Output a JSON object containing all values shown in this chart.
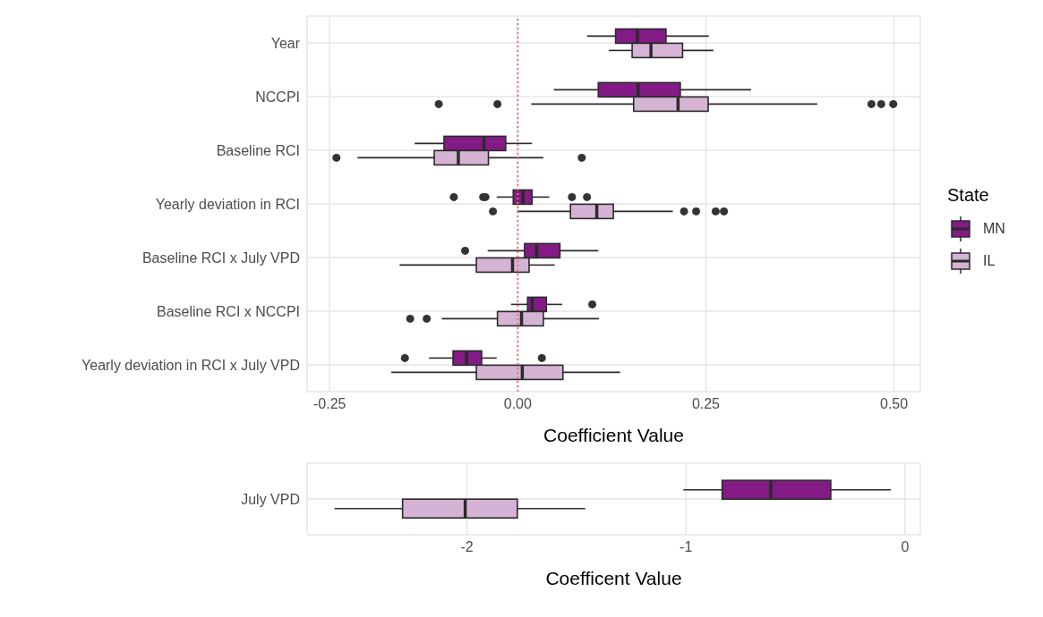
{
  "chart_data": [
    {
      "type": "box",
      "orientation": "horizontal",
      "xlabel": "Coefficient Value",
      "legend_title": "State",
      "legend": "right",
      "grid": true,
      "categories": [
        "Year",
        "NCCPI",
        "Baseline RCI",
        "Yearly deviation in RCI",
        "Baseline RCI x July VPD",
        "Baseline RCI x NCCPI",
        "Yearly deviation in RCI x July VPD"
      ],
      "xlim": [
        -0.28,
        0.535
      ],
      "xticks": [
        {
          "value": -0.25,
          "label": "-0.25"
        },
        {
          "value": 0,
          "label": "0.00"
        },
        {
          "value": 0.25,
          "label": "0.25"
        },
        {
          "value": 0.5,
          "label": "0.50"
        }
      ],
      "ref_lines": [
        {
          "axis": "x",
          "value": 0,
          "color": "#e8776b",
          "line_style": "dotted"
        }
      ],
      "series": [
        {
          "name": "MN",
          "color": "#841a85",
          "boxes": [
            {
              "low": 0.092,
              "q1": 0.13,
              "median": 0.159,
              "q3": 0.197,
              "high": 0.254
            },
            {
              "low": 0.048,
              "q1": 0.107,
              "median": 0.16,
              "q3": 0.216,
              "high": 0.31
            },
            {
              "low": -0.137,
              "q1": -0.098,
              "median": -0.045,
              "q3": -0.016,
              "high": 0.019
            },
            {
              "low": -0.028,
              "q1": -0.006,
              "median": 0.007,
              "q3": 0.019,
              "high": 0.042,
              "outliers": [
                -0.085,
                -0.046,
                -0.043,
                0.072,
                0.092
              ]
            },
            {
              "low": -0.04,
              "q1": 0.009,
              "median": 0.025,
              "q3": 0.056,
              "high": 0.107,
              "outliers": [
                -0.07
              ]
            },
            {
              "low": -0.009,
              "q1": 0.013,
              "median": 0.019,
              "q3": 0.038,
              "high": 0.059,
              "outliers": [
                0.099
              ]
            },
            {
              "low": -0.118,
              "q1": -0.086,
              "median": -0.068,
              "q3": -0.048,
              "high": -0.028,
              "outliers": [
                -0.15,
                0.032
              ]
            }
          ]
        },
        {
          "name": "IL",
          "color": "#d5b3d4",
          "boxes": [
            {
              "low": 0.121,
              "q1": 0.152,
              "median": 0.177,
              "q3": 0.219,
              "high": 0.26
            },
            {
              "low": 0.018,
              "q1": 0.154,
              "median": 0.213,
              "q3": 0.253,
              "high": 0.398,
              "outliers": [
                -0.105,
                -0.027,
                0.47,
                0.483,
                0.499
              ]
            },
            {
              "low": -0.213,
              "q1": -0.111,
              "median": -0.079,
              "q3": -0.039,
              "high": 0.034,
              "outliers": [
                -0.241,
                0.085
              ]
            },
            {
              "low": -0.001,
              "q1": 0.07,
              "median": 0.105,
              "q3": 0.127,
              "high": 0.206,
              "outliers": [
                -0.033,
                0.221,
                0.237,
                0.263,
                0.274
              ]
            },
            {
              "low": -0.157,
              "q1": -0.055,
              "median": -0.007,
              "q3": 0.015,
              "high": 0.049
            },
            {
              "low": -0.101,
              "q1": -0.027,
              "median": 0.005,
              "q3": 0.034,
              "high": 0.108,
              "outliers": [
                -0.143,
                -0.121
              ]
            },
            {
              "low": -0.168,
              "q1": -0.055,
              "median": 0.006,
              "q3": 0.06,
              "high": 0.136
            }
          ]
        }
      ]
    },
    {
      "type": "box",
      "orientation": "horizontal",
      "xlabel": "Coefficent Value",
      "grid": true,
      "categories": [
        "July VPD"
      ],
      "xlim": [
        -2.73,
        0.07
      ],
      "xticks": [
        -2,
        -1,
        0
      ],
      "series": [
        {
          "color": "#841a85",
          "boxes": [
            {
              "low": -1.012,
              "q1": -0.835,
              "median": -0.613,
              "q3": -0.339,
              "high": -0.065
            }
          ]
        },
        {
          "color": "#d5b3d4",
          "boxes": [
            {
              "low": -2.605,
              "q1": -2.294,
              "median": -2.008,
              "q3": -1.77,
              "high": -1.46
            }
          ]
        }
      ]
    }
  ]
}
